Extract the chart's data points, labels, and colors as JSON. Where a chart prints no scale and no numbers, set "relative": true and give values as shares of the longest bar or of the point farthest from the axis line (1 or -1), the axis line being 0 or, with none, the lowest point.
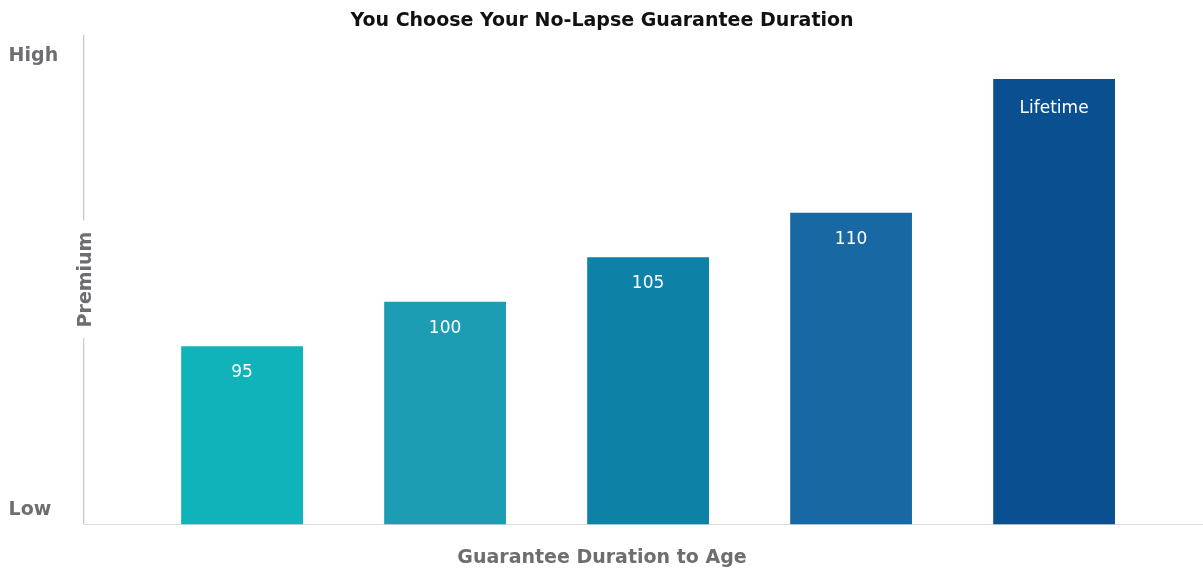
{
  "chart_data": {
    "type": "bar",
    "title": "You Choose Your No-Lapse Guarantee Duration",
    "xlabel": "Guarantee Duration to Age",
    "ylabel": "Premium",
    "relative": true,
    "categories": [
      "95",
      "100",
      "105",
      "110",
      "Lifetime"
    ],
    "values": [
      0.4,
      0.5,
      0.6,
      0.7,
      1
    ],
    "colors": [
      "#10b3ba",
      "#1d9db4",
      "#0e82a6",
      "#1869a3",
      "#0a4f90"
    ],
    "annotations": [
      "High",
      "Low"
    ]
  }
}
